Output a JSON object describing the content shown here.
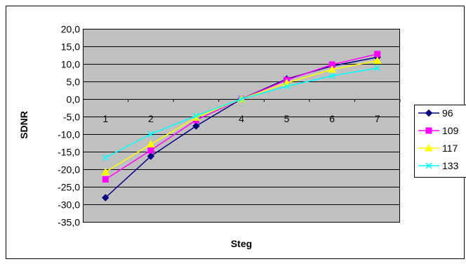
{
  "chart_data": {
    "type": "line",
    "title": "",
    "xlabel": "Steg",
    "ylabel": "SDNR",
    "categories": [
      "1",
      "2",
      "3",
      "4",
      "5",
      "6",
      "7"
    ],
    "y_ticks": [
      "20,0",
      "15,0",
      "10,0",
      "5,0",
      "0,0",
      "-5,0",
      "-10,0",
      "-15,0",
      "-20,0",
      "-25,0",
      "-30,0",
      "-35,0"
    ],
    "ylim": [
      -35,
      20
    ],
    "grid": true,
    "plot_background": "#C0C0C0",
    "legend_position": "right",
    "series": [
      {
        "name": "96",
        "color": "#000080",
        "marker": "diamond",
        "values": [
          -28.1,
          -16.3,
          -7.7,
          0,
          5.7,
          9.4,
          11.9
        ]
      },
      {
        "name": "109",
        "color": "#FF00FF",
        "marker": "square",
        "values": [
          -22.9,
          -14.6,
          -6.0,
          0,
          5.4,
          9.8,
          12.8
        ]
      },
      {
        "name": "117",
        "color": "#FFFF00",
        "marker": "triangle",
        "values": [
          -20.8,
          -12.9,
          -5.3,
          0,
          4.6,
          8.4,
          10.9
        ]
      },
      {
        "name": "133",
        "color": "#00FFFF",
        "marker": "x",
        "values": [
          -16.7,
          -10.0,
          -4.8,
          0,
          3.6,
          6.6,
          8.8
        ]
      }
    ]
  }
}
